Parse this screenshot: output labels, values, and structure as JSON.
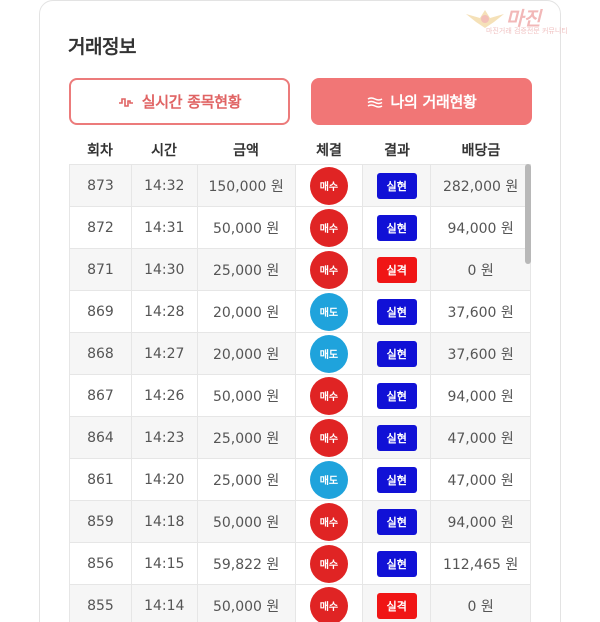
{
  "panel": {
    "title": "거래정보"
  },
  "watermark": {
    "main": "마진",
    "sub": "마진거래 검증전문 커뮤니티"
  },
  "buttons": {
    "live_label": "실시간 종목현황",
    "mine_label": "나의 거래현황"
  },
  "table": {
    "headers": [
      "회차",
      "시간",
      "금액",
      "체결",
      "결과",
      "배당금"
    ],
    "rows": [
      {
        "round": "873",
        "time": "14:32",
        "amount": "150,000 원",
        "trade": "매수",
        "result": "실현",
        "dividend": "282,000 원"
      },
      {
        "round": "872",
        "time": "14:31",
        "amount": "50,000 원",
        "trade": "매수",
        "result": "실현",
        "dividend": "94,000 원"
      },
      {
        "round": "871",
        "time": "14:30",
        "amount": "25,000 원",
        "trade": "매수",
        "result": "실격",
        "dividend": "0 원"
      },
      {
        "round": "869",
        "time": "14:28",
        "amount": "20,000 원",
        "trade": "매도",
        "result": "실현",
        "dividend": "37,600 원"
      },
      {
        "round": "868",
        "time": "14:27",
        "amount": "20,000 원",
        "trade": "매도",
        "result": "실현",
        "dividend": "37,600 원"
      },
      {
        "round": "867",
        "time": "14:26",
        "amount": "50,000 원",
        "trade": "매수",
        "result": "실현",
        "dividend": "94,000 원"
      },
      {
        "round": "864",
        "time": "14:23",
        "amount": "25,000 원",
        "trade": "매수",
        "result": "실현",
        "dividend": "47,000 원"
      },
      {
        "round": "861",
        "time": "14:20",
        "amount": "25,000 원",
        "trade": "매도",
        "result": "실현",
        "dividend": "47,000 원"
      },
      {
        "round": "859",
        "time": "14:18",
        "amount": "50,000 원",
        "trade": "매수",
        "result": "실현",
        "dividend": "94,000 원"
      },
      {
        "round": "856",
        "time": "14:15",
        "amount": "59,822 원",
        "trade": "매수",
        "result": "실현",
        "dividend": "112,465 원"
      },
      {
        "round": "855",
        "time": "14:14",
        "amount": "50,000 원",
        "trade": "매수",
        "result": "실격",
        "dividend": "0 원"
      }
    ]
  },
  "colors": {
    "buy": "#e02424",
    "sell": "#1fa3dc",
    "realized": "#1111d6",
    "disqualified": "#f01515",
    "accent": "#f17676"
  },
  "icons": {
    "live": "pulse-wave-icon",
    "mine": "triple-wave-icon"
  }
}
